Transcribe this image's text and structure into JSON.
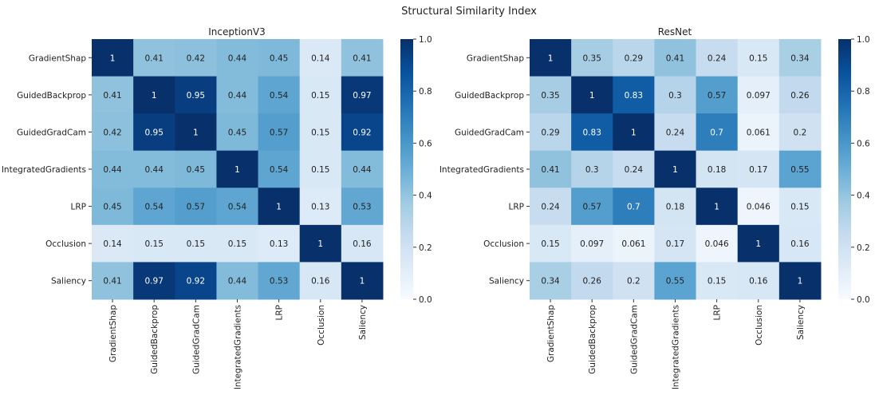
{
  "chart_data": {
    "title": "Structural Similarity Index",
    "type": "heatmap",
    "colormap": "Blues",
    "colorbar_ticks": [
      "0.0",
      "0.2",
      "0.4",
      "0.6",
      "0.8",
      "1.0"
    ],
    "vmin": 0.0,
    "vmax": 1.0,
    "heatmaps": [
      {
        "title": "InceptionV3",
        "labels": [
          "GradientShap",
          "GuidedBackprop",
          "GuidedGradCam",
          "IntegratedGradients",
          "LRP",
          "Occlusion",
          "Saliency"
        ],
        "values": [
          [
            1,
            0.41,
            0.42,
            0.44,
            0.45,
            0.14,
            0.41
          ],
          [
            0.41,
            1,
            0.95,
            0.44,
            0.54,
            0.15,
            0.97
          ],
          [
            0.42,
            0.95,
            1,
            0.45,
            0.57,
            0.15,
            0.92
          ],
          [
            0.44,
            0.44,
            0.45,
            1,
            0.54,
            0.15,
            0.44
          ],
          [
            0.45,
            0.54,
            0.57,
            0.54,
            1,
            0.13,
            0.53
          ],
          [
            0.14,
            0.15,
            0.15,
            0.15,
            0.13,
            1,
            0.16
          ],
          [
            0.41,
            0.97,
            0.92,
            0.44,
            0.53,
            0.16,
            1
          ]
        ]
      },
      {
        "title": "ResNet",
        "labels": [
          "GradientShap",
          "GuidedBackprop",
          "GuidedGradCam",
          "IntegratedGradients",
          "LRP",
          "Occlusion",
          "Saliency"
        ],
        "values": [
          [
            1,
            0.35,
            0.29,
            0.41,
            0.24,
            0.15,
            0.34
          ],
          [
            0.35,
            1,
            0.83,
            0.3,
            0.57,
            0.097,
            0.26
          ],
          [
            0.29,
            0.83,
            1,
            0.24,
            0.7,
            0.061,
            0.2
          ],
          [
            0.41,
            0.3,
            0.24,
            1,
            0.18,
            0.17,
            0.55
          ],
          [
            0.24,
            0.57,
            0.7,
            0.18,
            1,
            0.046,
            0.15
          ],
          [
            0.15,
            0.097,
            0.061,
            0.17,
            0.046,
            1,
            0.16
          ],
          [
            0.34,
            0.26,
            0.2,
            0.55,
            0.15,
            0.16,
            1
          ]
        ]
      }
    ]
  }
}
